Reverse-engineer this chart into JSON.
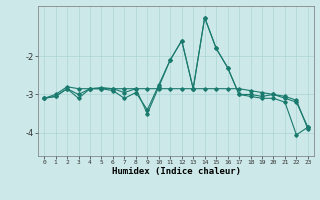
{
  "xlabel": "Humidex (Indice chaleur)",
  "background_color": "#cce8e8",
  "grid_color": "#aad4d4",
  "line_color": "#1a7a6e",
  "x_values": [
    0,
    1,
    2,
    3,
    4,
    5,
    6,
    7,
    8,
    9,
    10,
    11,
    12,
    13,
    14,
    15,
    16,
    17,
    18,
    19,
    20,
    21,
    22,
    23
  ],
  "series1": [
    -3.1,
    -3.0,
    -2.8,
    -2.85,
    -2.85,
    -2.82,
    -2.85,
    -2.85,
    -2.85,
    -2.85,
    -2.85,
    -2.85,
    -2.85,
    -2.85,
    -2.85,
    -2.85,
    -2.85,
    -2.85,
    -2.9,
    -2.95,
    -3.0,
    -3.1,
    -3.2,
    -3.85
  ],
  "series2": [
    -3.1,
    -3.05,
    -2.85,
    -3.1,
    -2.85,
    -2.85,
    -2.9,
    -3.1,
    -2.95,
    -3.4,
    -2.75,
    -2.1,
    -1.6,
    -2.85,
    -1.0,
    -1.8,
    -2.3,
    -3.0,
    -3.0,
    -3.05,
    -3.0,
    -3.05,
    -3.15,
    -3.9
  ],
  "series3": [
    -3.1,
    -3.05,
    -2.85,
    -3.0,
    -2.85,
    -2.85,
    -2.85,
    -2.95,
    -2.85,
    -3.5,
    -2.8,
    -2.1,
    -1.6,
    -2.85,
    -1.0,
    -1.8,
    -2.3,
    -3.0,
    -3.05,
    -3.1,
    -3.1,
    -3.2,
    -4.05,
    -3.85
  ],
  "ylim": [
    -4.6,
    -0.7
  ],
  "yticks": [
    -4,
    -3,
    -2
  ],
  "figsize": [
    3.2,
    2.0
  ],
  "dpi": 100
}
